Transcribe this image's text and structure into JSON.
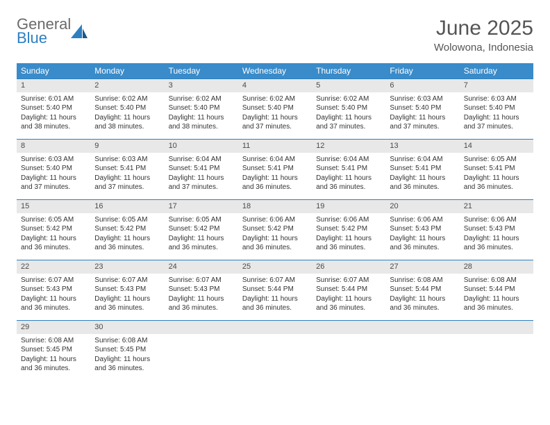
{
  "colors": {
    "header_bar": "#3a8bc9",
    "row_divider": "#2d7fc1",
    "daynum_bg": "#e8e8e8",
    "text": "#333333",
    "logo_gray": "#6b6b6b",
    "logo_blue": "#2d7fc1"
  },
  "logo": {
    "line1": "General",
    "line2": "Blue"
  },
  "title": "June 2025",
  "location": "Wolowona, Indonesia",
  "weekdays": [
    "Sunday",
    "Monday",
    "Tuesday",
    "Wednesday",
    "Thursday",
    "Friday",
    "Saturday"
  ],
  "weeks": [
    [
      {
        "n": "1",
        "sunrise": "Sunrise: 6:01 AM",
        "sunset": "Sunset: 5:40 PM",
        "day": "Daylight: 11 hours and 38 minutes."
      },
      {
        "n": "2",
        "sunrise": "Sunrise: 6:02 AM",
        "sunset": "Sunset: 5:40 PM",
        "day": "Daylight: 11 hours and 38 minutes."
      },
      {
        "n": "3",
        "sunrise": "Sunrise: 6:02 AM",
        "sunset": "Sunset: 5:40 PM",
        "day": "Daylight: 11 hours and 38 minutes."
      },
      {
        "n": "4",
        "sunrise": "Sunrise: 6:02 AM",
        "sunset": "Sunset: 5:40 PM",
        "day": "Daylight: 11 hours and 37 minutes."
      },
      {
        "n": "5",
        "sunrise": "Sunrise: 6:02 AM",
        "sunset": "Sunset: 5:40 PM",
        "day": "Daylight: 11 hours and 37 minutes."
      },
      {
        "n": "6",
        "sunrise": "Sunrise: 6:03 AM",
        "sunset": "Sunset: 5:40 PM",
        "day": "Daylight: 11 hours and 37 minutes."
      },
      {
        "n": "7",
        "sunrise": "Sunrise: 6:03 AM",
        "sunset": "Sunset: 5:40 PM",
        "day": "Daylight: 11 hours and 37 minutes."
      }
    ],
    [
      {
        "n": "8",
        "sunrise": "Sunrise: 6:03 AM",
        "sunset": "Sunset: 5:40 PM",
        "day": "Daylight: 11 hours and 37 minutes."
      },
      {
        "n": "9",
        "sunrise": "Sunrise: 6:03 AM",
        "sunset": "Sunset: 5:41 PM",
        "day": "Daylight: 11 hours and 37 minutes."
      },
      {
        "n": "10",
        "sunrise": "Sunrise: 6:04 AM",
        "sunset": "Sunset: 5:41 PM",
        "day": "Daylight: 11 hours and 37 minutes."
      },
      {
        "n": "11",
        "sunrise": "Sunrise: 6:04 AM",
        "sunset": "Sunset: 5:41 PM",
        "day": "Daylight: 11 hours and 36 minutes."
      },
      {
        "n": "12",
        "sunrise": "Sunrise: 6:04 AM",
        "sunset": "Sunset: 5:41 PM",
        "day": "Daylight: 11 hours and 36 minutes."
      },
      {
        "n": "13",
        "sunrise": "Sunrise: 6:04 AM",
        "sunset": "Sunset: 5:41 PM",
        "day": "Daylight: 11 hours and 36 minutes."
      },
      {
        "n": "14",
        "sunrise": "Sunrise: 6:05 AM",
        "sunset": "Sunset: 5:41 PM",
        "day": "Daylight: 11 hours and 36 minutes."
      }
    ],
    [
      {
        "n": "15",
        "sunrise": "Sunrise: 6:05 AM",
        "sunset": "Sunset: 5:42 PM",
        "day": "Daylight: 11 hours and 36 minutes."
      },
      {
        "n": "16",
        "sunrise": "Sunrise: 6:05 AM",
        "sunset": "Sunset: 5:42 PM",
        "day": "Daylight: 11 hours and 36 minutes."
      },
      {
        "n": "17",
        "sunrise": "Sunrise: 6:05 AM",
        "sunset": "Sunset: 5:42 PM",
        "day": "Daylight: 11 hours and 36 minutes."
      },
      {
        "n": "18",
        "sunrise": "Sunrise: 6:06 AM",
        "sunset": "Sunset: 5:42 PM",
        "day": "Daylight: 11 hours and 36 minutes."
      },
      {
        "n": "19",
        "sunrise": "Sunrise: 6:06 AM",
        "sunset": "Sunset: 5:42 PM",
        "day": "Daylight: 11 hours and 36 minutes."
      },
      {
        "n": "20",
        "sunrise": "Sunrise: 6:06 AM",
        "sunset": "Sunset: 5:43 PM",
        "day": "Daylight: 11 hours and 36 minutes."
      },
      {
        "n": "21",
        "sunrise": "Sunrise: 6:06 AM",
        "sunset": "Sunset: 5:43 PM",
        "day": "Daylight: 11 hours and 36 minutes."
      }
    ],
    [
      {
        "n": "22",
        "sunrise": "Sunrise: 6:07 AM",
        "sunset": "Sunset: 5:43 PM",
        "day": "Daylight: 11 hours and 36 minutes."
      },
      {
        "n": "23",
        "sunrise": "Sunrise: 6:07 AM",
        "sunset": "Sunset: 5:43 PM",
        "day": "Daylight: 11 hours and 36 minutes."
      },
      {
        "n": "24",
        "sunrise": "Sunrise: 6:07 AM",
        "sunset": "Sunset: 5:43 PM",
        "day": "Daylight: 11 hours and 36 minutes."
      },
      {
        "n": "25",
        "sunrise": "Sunrise: 6:07 AM",
        "sunset": "Sunset: 5:44 PM",
        "day": "Daylight: 11 hours and 36 minutes."
      },
      {
        "n": "26",
        "sunrise": "Sunrise: 6:07 AM",
        "sunset": "Sunset: 5:44 PM",
        "day": "Daylight: 11 hours and 36 minutes."
      },
      {
        "n": "27",
        "sunrise": "Sunrise: 6:08 AM",
        "sunset": "Sunset: 5:44 PM",
        "day": "Daylight: 11 hours and 36 minutes."
      },
      {
        "n": "28",
        "sunrise": "Sunrise: 6:08 AM",
        "sunset": "Sunset: 5:44 PM",
        "day": "Daylight: 11 hours and 36 minutes."
      }
    ],
    [
      {
        "n": "29",
        "sunrise": "Sunrise: 6:08 AM",
        "sunset": "Sunset: 5:45 PM",
        "day": "Daylight: 11 hours and 36 minutes."
      },
      {
        "n": "30",
        "sunrise": "Sunrise: 6:08 AM",
        "sunset": "Sunset: 5:45 PM",
        "day": "Daylight: 11 hours and 36 minutes."
      },
      {
        "empty": true
      },
      {
        "empty": true
      },
      {
        "empty": true
      },
      {
        "empty": true
      },
      {
        "empty": true
      }
    ]
  ]
}
